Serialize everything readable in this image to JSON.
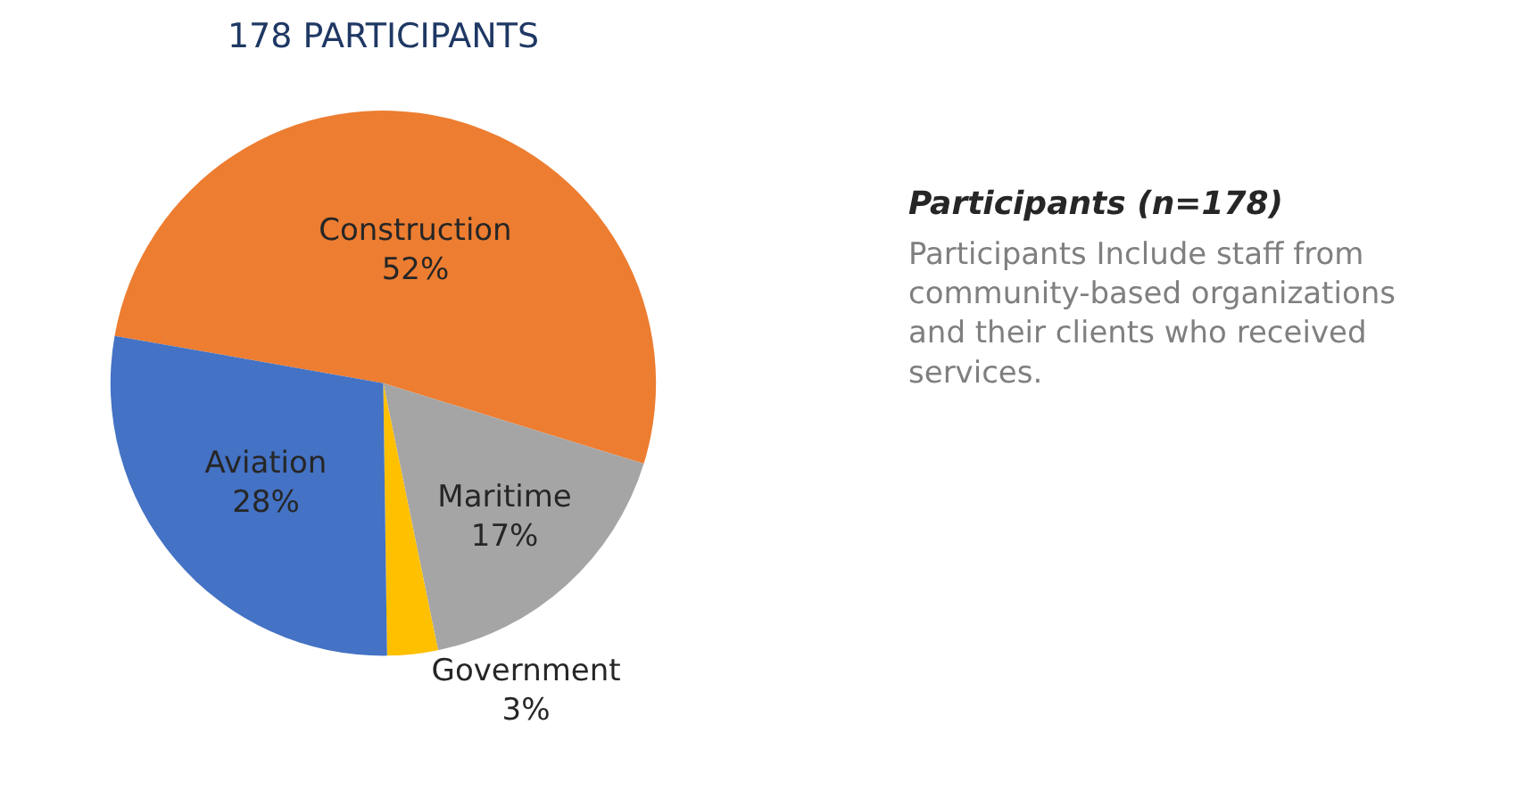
{
  "chart_data": {
    "type": "pie",
    "title": "178 PARTICIPANTS",
    "categories": [
      "Construction",
      "Maritime",
      "Government",
      "Aviation"
    ],
    "values": [
      52,
      17,
      3,
      28
    ],
    "value_labels": [
      "52%",
      "17%",
      "3%",
      "28%"
    ],
    "colors": [
      "#ed7d31",
      "#a5a5a5",
      "#ffc000",
      "#4472c4"
    ],
    "annotations": [
      "Participants (n=178)",
      "Participants Include staff from community-based organizations and their clients who received services."
    ],
    "legend": false
  }
}
